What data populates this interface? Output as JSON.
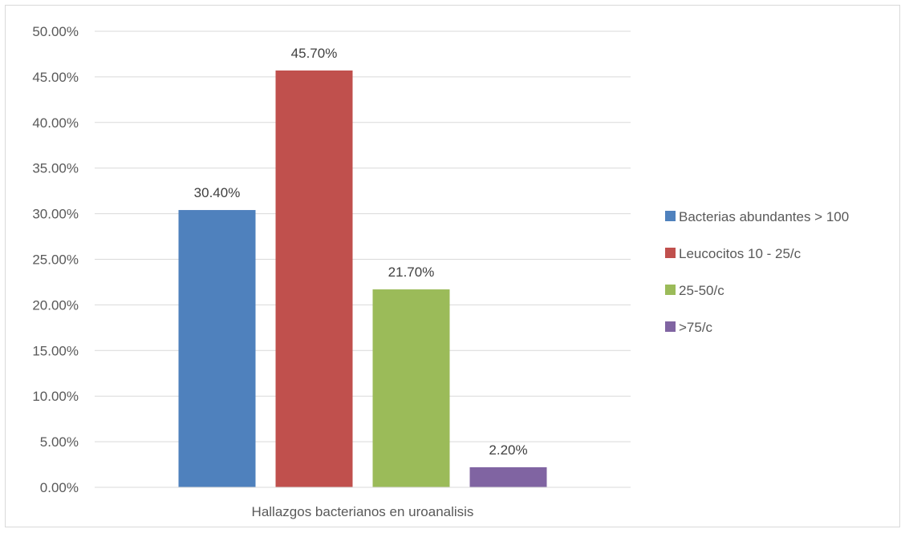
{
  "chart_data": {
    "type": "bar",
    "title": "",
    "categories": [
      "Hallazgos bacterianos en uroanalisis"
    ],
    "series": [
      {
        "name": "Bacterias abundantes > 100",
        "values": [
          30.4
        ],
        "label": "30.40%",
        "color": "#4f81bd"
      },
      {
        "name": "Leucocitos 10 - 25/c",
        "values": [
          45.7
        ],
        "label": "45.70%",
        "color": "#c0504d"
      },
      {
        "name": "25-50/c",
        "values": [
          21.7
        ],
        "label": "21.70%",
        "color": "#9bbb59"
      },
      {
        "name": ">75/c",
        "values": [
          2.2
        ],
        "label": "2.20%",
        "color": "#8064a2"
      }
    ],
    "ylim": [
      0,
      50
    ],
    "y_ticks": [
      {
        "value": 0,
        "label": "0.00%"
      },
      {
        "value": 5,
        "label": "5.00%"
      },
      {
        "value": 10,
        "label": "10.00%"
      },
      {
        "value": 15,
        "label": "15.00%"
      },
      {
        "value": 20,
        "label": "20.00%"
      },
      {
        "value": 25,
        "label": "25.00%"
      },
      {
        "value": 30,
        "label": "30.00%"
      },
      {
        "value": 35,
        "label": "35.00%"
      },
      {
        "value": 40,
        "label": "40.00%"
      },
      {
        "value": 45,
        "label": "45.00%"
      },
      {
        "value": 50,
        "label": "50.00%"
      }
    ],
    "grid": true,
    "legend_position": "right",
    "gridline_color": "#d9d9d9"
  }
}
